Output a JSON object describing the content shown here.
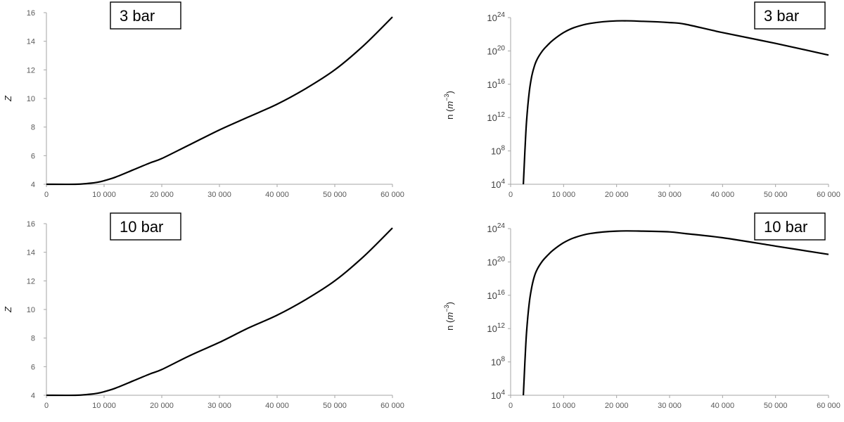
{
  "chart_data": [
    {
      "type": "line",
      "panel": "top-left",
      "annotation": "3 bar",
      "ylabel": "Z",
      "xlim": [
        0,
        60000
      ],
      "ylim": [
        4,
        16
      ],
      "xticks": [
        "0",
        "10 000",
        "20 000",
        "30 000",
        "40 000",
        "50 000",
        "60 000"
      ],
      "yticks": [
        "4",
        "6",
        "8",
        "10",
        "12",
        "14",
        "16"
      ],
      "x": [
        0,
        5000,
        7000,
        9000,
        10000,
        12000,
        15000,
        18000,
        20000,
        25000,
        30000,
        35000,
        40000,
        45000,
        50000,
        55000,
        60000
      ],
      "y": [
        4.0,
        4.0,
        4.05,
        4.15,
        4.25,
        4.5,
        5.0,
        5.5,
        5.8,
        6.8,
        7.8,
        8.7,
        9.6,
        10.7,
        12.0,
        13.7,
        15.7
      ]
    },
    {
      "type": "line",
      "panel": "top-right",
      "annotation": "3 bar",
      "ylabel": "n (m⁻³)",
      "ylabel_main": "n (",
      "ylabel_math": "m",
      "ylabel_sup": "−3",
      "ylabel_close": ")",
      "yscale": "log",
      "xlim": [
        0,
        60000
      ],
      "ylim_exp": [
        4,
        24
      ],
      "xticks": [
        "0",
        "10 000",
        "20 000",
        "30 000",
        "40 000",
        "50 000",
        "60 000"
      ],
      "ytick_exps": [
        "4",
        "8",
        "12",
        "16",
        "20",
        "24"
      ],
      "ytick_base": "10",
      "x": [
        2400,
        2700,
        3000,
        3500,
        4000,
        4500,
        5000,
        6000,
        7000,
        8000,
        10000,
        12000,
        15000,
        20000,
        25000,
        30000,
        33000,
        40000,
        50000,
        60000
      ],
      "y_exp": [
        4,
        8,
        11.5,
        15,
        17,
        18.2,
        19,
        20,
        20.7,
        21.3,
        22.2,
        22.8,
        23.3,
        23.6,
        23.55,
        23.4,
        23.2,
        22.2,
        20.9,
        19.5
      ]
    },
    {
      "type": "line",
      "panel": "bottom-left",
      "annotation": "10 bar",
      "ylabel": "Z",
      "xlim": [
        0,
        60000
      ],
      "ylim": [
        4,
        16
      ],
      "xticks": [
        "0",
        "10 000",
        "20 000",
        "30 000",
        "40 000",
        "50 000",
        "60 000"
      ],
      "yticks": [
        "4",
        "6",
        "8",
        "10",
        "12",
        "14",
        "16"
      ],
      "x": [
        0,
        5000,
        7000,
        9000,
        10000,
        12000,
        15000,
        18000,
        20000,
        25000,
        30000,
        35000,
        40000,
        45000,
        50000,
        55000,
        60000
      ],
      "y": [
        4.0,
        4.0,
        4.05,
        4.15,
        4.25,
        4.5,
        5.0,
        5.5,
        5.8,
        6.8,
        7.7,
        8.7,
        9.6,
        10.7,
        12.0,
        13.7,
        15.7
      ]
    },
    {
      "type": "line",
      "panel": "bottom-right",
      "annotation": "10 bar",
      "ylabel": "n (m⁻³)",
      "ylabel_main": "n (",
      "ylabel_math": "m",
      "ylabel_sup": "−3",
      "ylabel_close": ")",
      "yscale": "log",
      "xlim": [
        0,
        60000
      ],
      "ylim_exp": [
        4,
        24
      ],
      "xticks": [
        "0",
        "10 000",
        "20 000",
        "30 000",
        "40 000",
        "50 000",
        "60 000"
      ],
      "ytick_exps": [
        "4",
        "8",
        "12",
        "16",
        "20",
        "24"
      ],
      "ytick_base": "10",
      "x": [
        2400,
        2700,
        3000,
        3500,
        4000,
        4500,
        5000,
        6000,
        7000,
        8000,
        10000,
        12000,
        15000,
        20000,
        25000,
        30000,
        33000,
        40000,
        50000,
        60000
      ],
      "y_exp": [
        4,
        8,
        11.5,
        15,
        17,
        18.3,
        19.1,
        20.1,
        20.8,
        21.4,
        22.3,
        22.9,
        23.4,
        23.7,
        23.7,
        23.6,
        23.4,
        22.9,
        21.9,
        20.9
      ]
    }
  ]
}
